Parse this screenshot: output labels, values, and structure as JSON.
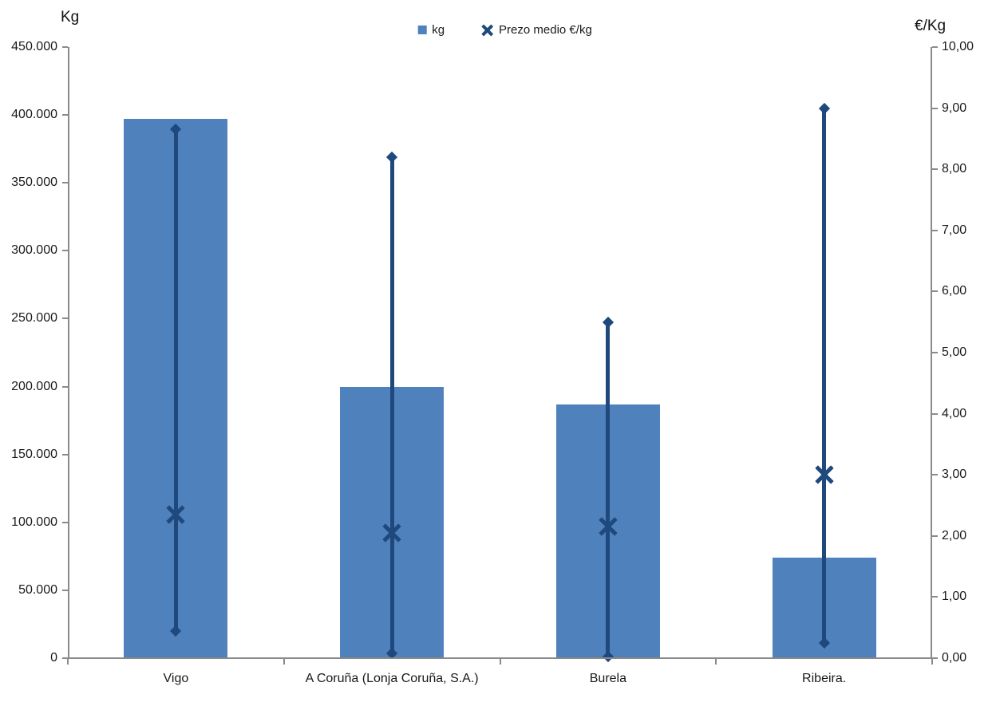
{
  "chart_data": {
    "type": "bar",
    "subtype": "combo: bars (kg, left axis) + high-low-average price markers (€/kg, right axis)",
    "categories": [
      "Vigo",
      "A Coruña (Lonja Coruña, S.A.)",
      "Burela",
      "Ribeira."
    ],
    "series": [
      {
        "name": "kg",
        "type": "bar",
        "axis": "left",
        "values": [
          397000,
          199500,
          187000,
          74000
        ]
      },
      {
        "name": "Prezo medio €/kg",
        "type": "high-low-average",
        "axis": "right",
        "avg": [
          2.35,
          2.05,
          2.15,
          3.0
        ],
        "min": [
          0.45,
          0.08,
          0.02,
          0.25
        ],
        "max": [
          8.65,
          8.2,
          5.5,
          9.0
        ]
      }
    ],
    "left_axis": {
      "title": "Kg",
      "min": 0,
      "max": 450000,
      "step": 50000,
      "tick_labels": [
        "450.000",
        "400.000",
        "350.000",
        "300.000",
        "250.000",
        "200.000",
        "150.000",
        "100.000",
        "50.000",
        "0"
      ]
    },
    "right_axis": {
      "title": "€/Kg",
      "min": 0,
      "max": 10,
      "step": 1,
      "tick_labels": [
        "10,00",
        "9,00",
        "8,00",
        "7,00",
        "6,00",
        "5,00",
        "4,00",
        "3,00",
        "2,00",
        "1,00",
        "0,00"
      ]
    },
    "legend": {
      "position": "top-center",
      "items": [
        {
          "label": "kg",
          "marker": "square-icon"
        },
        {
          "label": "Prezo medio €/kg",
          "marker": "x-icon"
        }
      ]
    },
    "grid": false,
    "colors": {
      "bar": "#4F81BD",
      "marker": "#1F497D",
      "axis_line": "#8a8a8a",
      "text": "#1a1a1a",
      "background": "#ffffff"
    }
  }
}
